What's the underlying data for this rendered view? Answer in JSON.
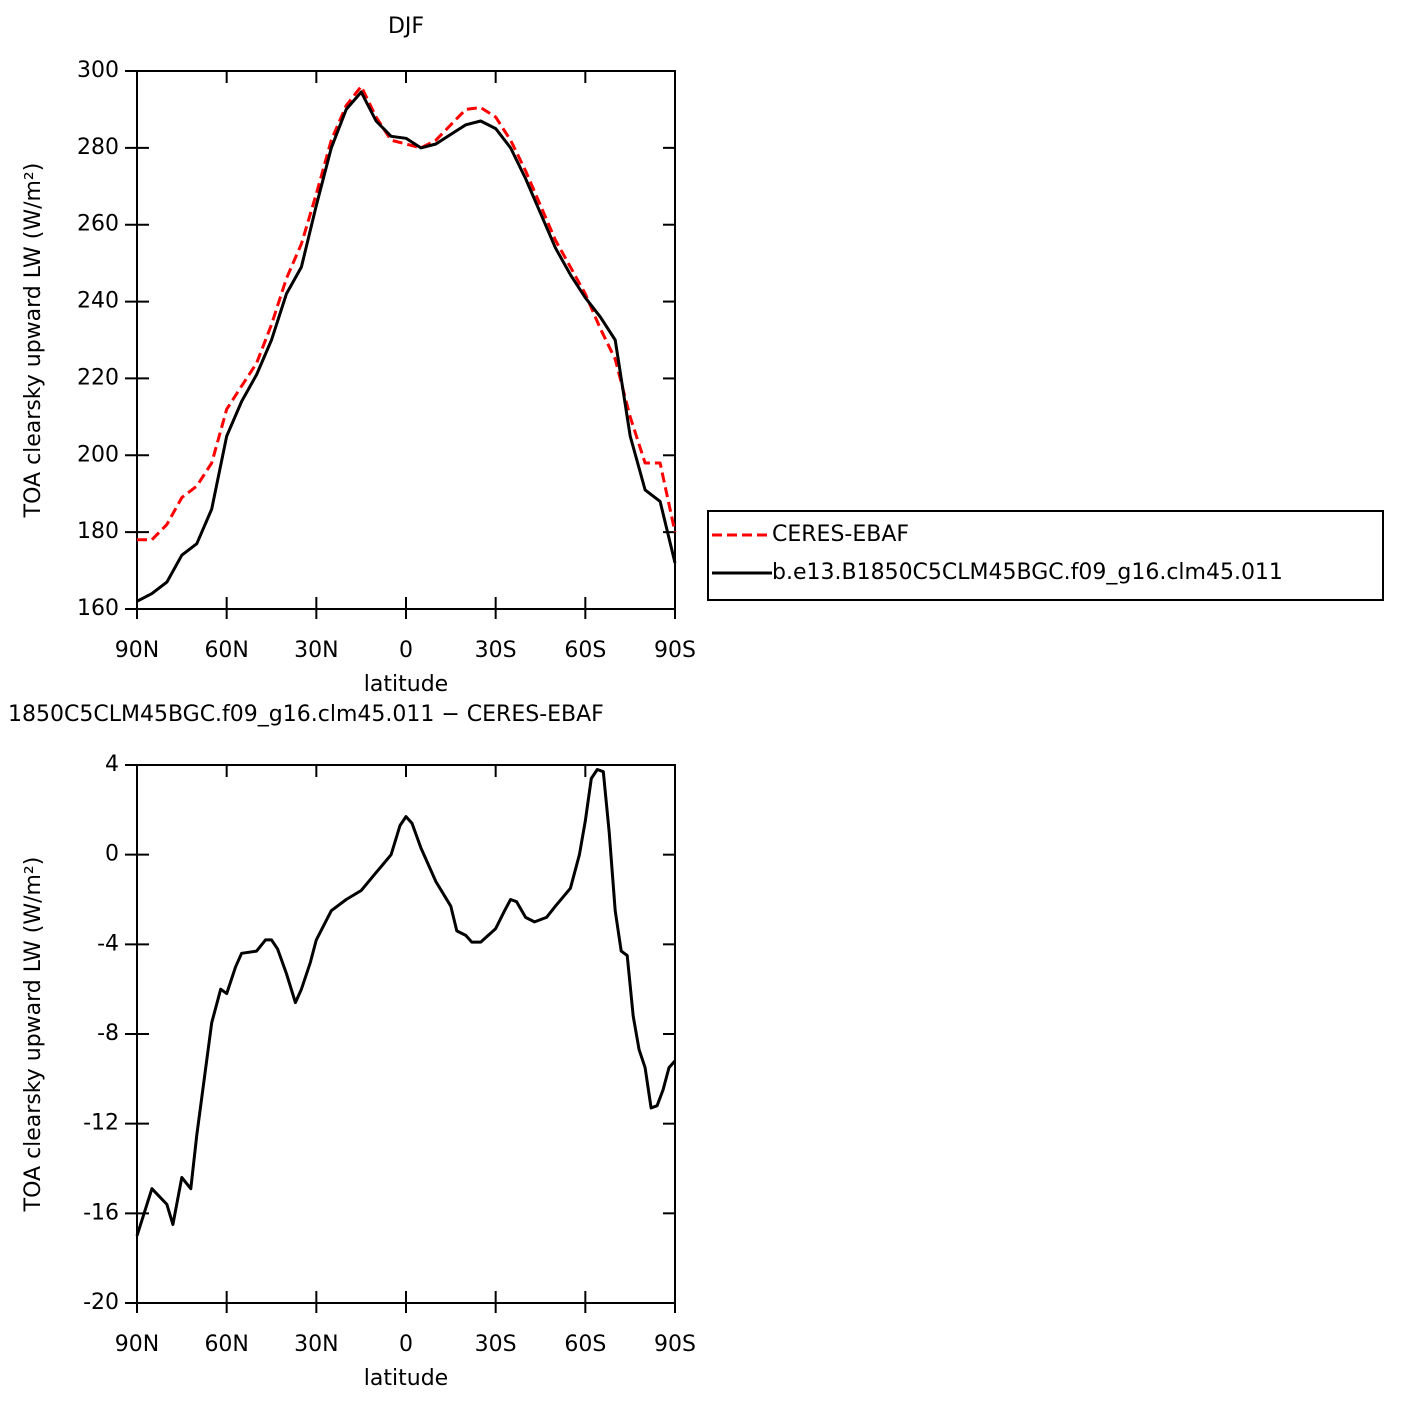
{
  "chart_data": [
    {
      "type": "line",
      "title": "DJF",
      "xlabel": "latitude",
      "ylabel": "TOA clearsky upward LW (W/m²)",
      "x": [
        90,
        85,
        80,
        75,
        70,
        65,
        60,
        55,
        50,
        45,
        40,
        35,
        30,
        25,
        20,
        15,
        10,
        5,
        0,
        -5,
        -10,
        -15,
        -20,
        -25,
        -30,
        -35,
        -40,
        -45,
        -50,
        -55,
        -60,
        -65,
        -70,
        -75,
        -80,
        -85,
        -90
      ],
      "series": [
        {
          "name": "CERES-EBAF",
          "color": "#ff0000",
          "dashed": true,
          "values": [
            178,
            178,
            182,
            189,
            192,
            198,
            212,
            218,
            224,
            234,
            246,
            255,
            268,
            282,
            291,
            296,
            288,
            282,
            281,
            280,
            282,
            286,
            290,
            290.5,
            288,
            282,
            274,
            265,
            256,
            249,
            242,
            233,
            225,
            210,
            198,
            198,
            180
          ]
        },
        {
          "name": "b.e13.B1850C5CLM45BGC.f09_g16.clm45.011",
          "color": "#000000",
          "dashed": false,
          "values": [
            162,
            164,
            167,
            174,
            177,
            186,
            205,
            214,
            221,
            230,
            242,
            249,
            265,
            280,
            290,
            294.5,
            287,
            283,
            282.5,
            280,
            281,
            283.5,
            286,
            287,
            285,
            280,
            272,
            263,
            254,
            247,
            241,
            236,
            230,
            205,
            191,
            188,
            172
          ]
        }
      ],
      "xlim": [
        90,
        -90
      ],
      "xticks": [
        {
          "value": 90,
          "label": "90N"
        },
        {
          "value": 60,
          "label": "60N"
        },
        {
          "value": 30,
          "label": "30N"
        },
        0,
        {
          "value": -30,
          "label": "30S"
        },
        {
          "value": -60,
          "label": "60S"
        },
        {
          "value": -90,
          "label": "90S"
        }
      ],
      "ylim": [
        160,
        300
      ],
      "yticks": [
        160,
        180,
        200,
        220,
        240,
        260,
        280,
        300
      ],
      "legend": "right"
    },
    {
      "type": "line",
      "title": "1850C5CLM45BGC.f09_g16.clm45.011 − CERES-EBAF",
      "xlabel": "latitude",
      "ylabel": "TOA clearsky upward LW (W/m²)",
      "x": [
        90,
        85,
        80,
        78,
        75,
        72,
        70,
        65,
        62,
        60,
        57,
        55,
        50,
        47,
        45,
        43,
        40,
        37,
        35,
        32,
        30,
        25,
        20,
        15,
        10,
        5,
        2,
        0,
        -2,
        -5,
        -10,
        -15,
        -17,
        -20,
        -22,
        -25,
        -30,
        -33,
        -35,
        -37,
        -40,
        -43,
        -47,
        -50,
        -55,
        -58,
        -60,
        -62,
        -64,
        -66,
        -68,
        -70,
        -72,
        -74,
        -76,
        -78,
        -80,
        -82,
        -84,
        -86,
        -88,
        -90
      ],
      "series": [
        {
          "name": null,
          "color": "#000000",
          "dashed": false,
          "values": [
            -17,
            -14.9,
            -15.6,
            -16.5,
            -14.4,
            -14.9,
            -12.5,
            -7.5,
            -6,
            -6.2,
            -5,
            -4.4,
            -4.3,
            -3.8,
            -3.8,
            -4.2,
            -5.3,
            -6.6,
            -6,
            -4.8,
            -3.8,
            -2.5,
            -2,
            -1.6,
            -0.8,
            0,
            1.3,
            1.7,
            1.4,
            0.3,
            -1.2,
            -2.3,
            -3.4,
            -3.6,
            -3.9,
            -3.9,
            -3.3,
            -2.5,
            -2,
            -2.1,
            -2.8,
            -3,
            -2.8,
            -2.3,
            -1.5,
            0,
            1.5,
            3.4,
            3.8,
            3.7,
            1,
            -2.5,
            -4.3,
            -4.5,
            -7.2,
            -8.7,
            -9.5,
            -11.3,
            -11.2,
            -10.5,
            -9.5,
            -9.2
          ]
        }
      ],
      "xlim": [
        90,
        -90
      ],
      "xticks": [
        {
          "value": 90,
          "label": "90N"
        },
        {
          "value": 60,
          "label": "60N"
        },
        {
          "value": 30,
          "label": "30N"
        },
        0,
        {
          "value": -30,
          "label": "30S"
        },
        {
          "value": -60,
          "label": "60S"
        },
        {
          "value": -90,
          "label": "90S"
        }
      ],
      "ylim": [
        -20,
        4
      ],
      "yticks": [
        -20,
        -16,
        -12,
        -8,
        -4,
        0,
        4
      ]
    }
  ]
}
